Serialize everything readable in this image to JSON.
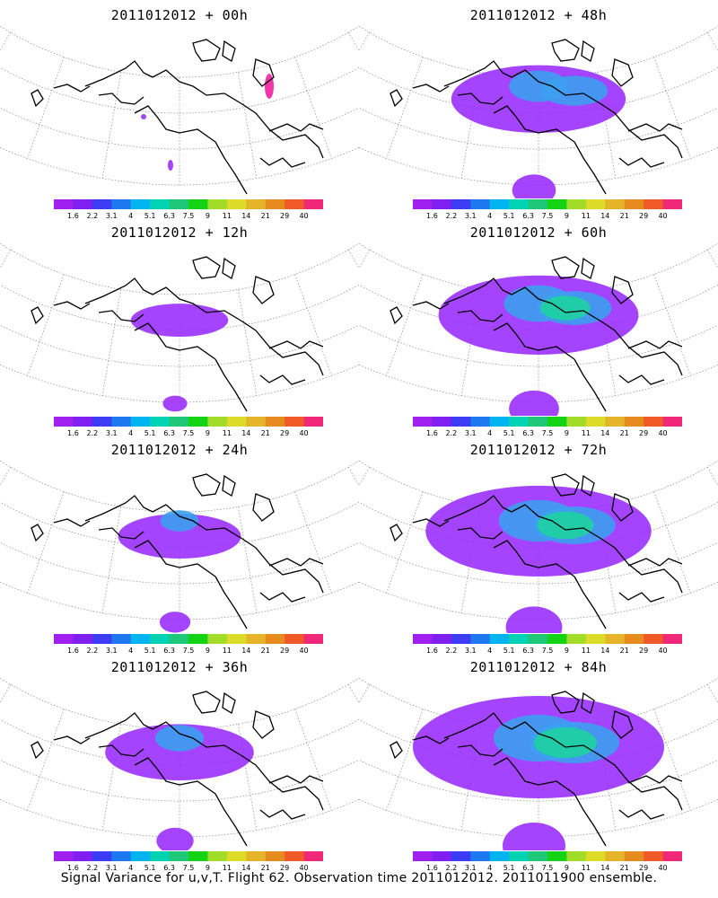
{
  "panels": [
    {
      "title": "2011012012 + 00h",
      "hours": 0
    },
    {
      "title": "2011012012 + 48h",
      "hours": 48
    },
    {
      "title": "2011012012 + 12h",
      "hours": 12
    },
    {
      "title": "2011012012 + 60h",
      "hours": 60
    },
    {
      "title": "2011012012 + 24h",
      "hours": 24
    },
    {
      "title": "2011012012 + 72h",
      "hours": 72
    },
    {
      "title": "2011012012 + 36h",
      "hours": 36
    },
    {
      "title": "2011012012 + 84h",
      "hours": 84
    }
  ],
  "colorbar": {
    "colors": [
      "#a020f0",
      "#7f1ff0",
      "#3c3cf5",
      "#1e78f0",
      "#00b4f0",
      "#00d2b4",
      "#1ec878",
      "#14d214",
      "#a0dc28",
      "#dcdc28",
      "#e6b428",
      "#e68c1e",
      "#f05a28",
      "#f02878"
    ],
    "labels": [
      "1.6",
      "2.2",
      "3.1",
      "4",
      "5.1",
      "6.3",
      "7.5",
      "9",
      "11",
      "14",
      "21",
      "29",
      "40"
    ]
  },
  "caption": "Signal Variance for u,v,T. Flight 62. Observation time 2011012012. 2011011900 ensemble.",
  "colors": {
    "coast": "#000000",
    "grid": "#888888",
    "low": "#9b30ff",
    "mid": "#3ca0f0",
    "high": "#1ed2a0"
  }
}
